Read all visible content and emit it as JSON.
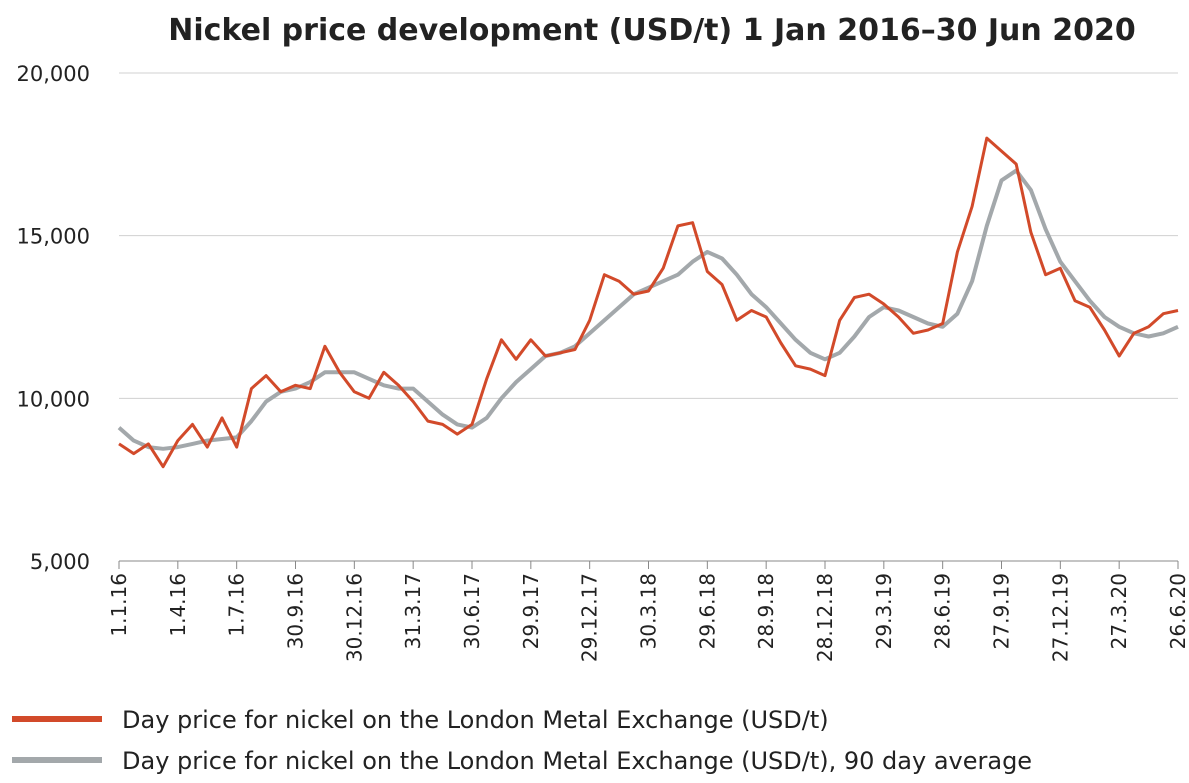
{
  "chart_data": {
    "type": "line",
    "title": "Nickel price development (USD/t) 1 Jan 2016–30 Jun 2020",
    "categories": [
      "1.1.16",
      null,
      null,
      null,
      "1.4.16",
      null,
      null,
      null,
      "1.7.16",
      null,
      null,
      null,
      "30.9.16",
      null,
      null,
      null,
      "30.12.16",
      null,
      null,
      null,
      "31.3.17",
      null,
      null,
      null,
      "30.6.17",
      null,
      null,
      null,
      "29.9.17",
      null,
      null,
      null,
      "29.12.17",
      null,
      null,
      null,
      "30.3.18",
      null,
      null,
      null,
      "29.6.18",
      null,
      null,
      null,
      "28.9.18",
      null,
      null,
      null,
      "28.12.18",
      null,
      null,
      null,
      "29.3.19",
      null,
      null,
      null,
      "28.6.19",
      null,
      null,
      null,
      "27.9.19",
      null,
      null,
      null,
      "27.12.19",
      null,
      null,
      null,
      "27.3.20",
      null,
      null,
      null,
      "26.6.20"
    ],
    "series": [
      {
        "name": "Day price for nickel on the London Metal Exchange (USD/t)",
        "color": "#d24a2a",
        "values": [
          8600,
          8300,
          8600,
          7900,
          8700,
          9200,
          8500,
          9400,
          8500,
          10300,
          10700,
          10200,
          10400,
          10300,
          11600,
          10800,
          10200,
          10000,
          10800,
          10400,
          9900,
          9300,
          9200,
          8900,
          9200,
          10600,
          11800,
          11200,
          11800,
          11300,
          11400,
          11500,
          12400,
          13800,
          13600,
          13200,
          13300,
          14000,
          15300,
          15400,
          13900,
          13500,
          12400,
          12700,
          12500,
          11700,
          11000,
          10900,
          10700,
          12400,
          13100,
          13200,
          12900,
          12500,
          12000,
          12100,
          12300,
          14500,
          15900,
          18000,
          17600,
          17200,
          15100,
          13800,
          14000,
          13000,
          12800,
          12100,
          11300,
          12000,
          12200,
          12600,
          12700
        ]
      },
      {
        "name": "Day price for nickel on the London Metal Exchange (USD/t), 90 day average",
        "color": "#a3a8ab",
        "values": [
          9100,
          8700,
          8500,
          8450,
          8500,
          8600,
          8700,
          8750,
          8800,
          9300,
          9900,
          10200,
          10300,
          10500,
          10800,
          10800,
          10800,
          10600,
          10400,
          10300,
          10300,
          9900,
          9500,
          9200,
          9100,
          9400,
          10000,
          10500,
          10900,
          11300,
          11400,
          11600,
          12000,
          12400,
          12800,
          13200,
          13400,
          13600,
          13800,
          14200,
          14500,
          14300,
          13800,
          13200,
          12800,
          12300,
          11800,
          11400,
          11200,
          11400,
          11900,
          12500,
          12800,
          12700,
          12500,
          12300,
          12200,
          12600,
          13600,
          15300,
          16700,
          17000,
          16400,
          15200,
          14200,
          13600,
          13000,
          12500,
          12200,
          12000,
          11900,
          12000,
          12200
        ]
      }
    ],
    "ylim": [
      5000,
      20000
    ],
    "yticks": [
      {
        "value": 5000,
        "label": "5,000"
      },
      {
        "value": 10000,
        "label": "10,000"
      },
      {
        "value": 15000,
        "label": "15,000"
      },
      {
        "value": 20000,
        "label": "20,000"
      }
    ],
    "grid": true
  }
}
